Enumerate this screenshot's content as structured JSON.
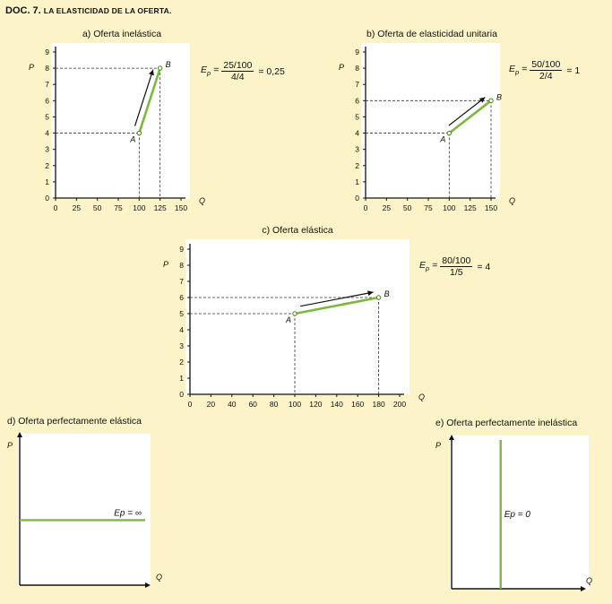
{
  "document": {
    "title_prefix": "DOC. 7.",
    "title_rest": "La elasticidad de la oferta."
  },
  "colors": {
    "background": "#fdf3c8",
    "panel": "#ffffff",
    "supply": "#7cb83c",
    "dashed": "#333333"
  },
  "chart_data": [
    {
      "id": "a",
      "type": "line",
      "title": "a)  Oferta inelástica",
      "xlabel": "Q",
      "ylabel": "P",
      "xlim": [
        0,
        150
      ],
      "ylim": [
        0,
        9
      ],
      "xticks": [
        0,
        25,
        50,
        75,
        100,
        125,
        150
      ],
      "yticks": [
        0,
        1,
        2,
        3,
        4,
        5,
        6,
        7,
        8,
        9
      ],
      "points": [
        {
          "label": "A",
          "x": 100,
          "y": 4
        },
        {
          "label": "B",
          "x": 125,
          "y": 8
        }
      ],
      "arrow": true,
      "formula": {
        "lhs": "E",
        "sub": "p",
        "num": "25/100",
        "den": "4/4",
        "result": "= 0,25"
      }
    },
    {
      "id": "b",
      "type": "line",
      "title": "b)  Oferta de elasticidad unitaria",
      "xlabel": "Q",
      "ylabel": "P",
      "xlim": [
        0,
        150
      ],
      "ylim": [
        0,
        9
      ],
      "xticks": [
        0,
        25,
        50,
        75,
        100,
        125,
        150
      ],
      "yticks": [
        0,
        1,
        2,
        3,
        4,
        5,
        6,
        7,
        8,
        9
      ],
      "points": [
        {
          "label": "A",
          "x": 100,
          "y": 4
        },
        {
          "label": "B",
          "x": 150,
          "y": 6
        }
      ],
      "arrow": true,
      "formula": {
        "lhs": "E",
        "sub": "p",
        "num": "50/100",
        "den": "2/4",
        "result": "= 1"
      }
    },
    {
      "id": "c",
      "type": "line",
      "title": "c)  Oferta elástica",
      "xlabel": "Q",
      "ylabel": "P",
      "xlim": [
        0,
        200
      ],
      "ylim": [
        0,
        9
      ],
      "xticks": [
        0,
        20,
        40,
        60,
        80,
        100,
        120,
        140,
        160,
        180,
        200
      ],
      "yticks": [
        0,
        1,
        2,
        3,
        4,
        5,
        6,
        7,
        8,
        9
      ],
      "points": [
        {
          "label": "A",
          "x": 100,
          "y": 5
        },
        {
          "label": "B",
          "x": 180,
          "y": 6
        }
      ],
      "arrow": true,
      "formula": {
        "lhs": "E",
        "sub": "p",
        "num": "80/100",
        "den": "1/5",
        "result": "= 4"
      }
    },
    {
      "id": "d",
      "type": "line",
      "title": "d)  Oferta perfectamente elástica",
      "xlabel": "Q",
      "ylabel": "P",
      "orientation": "horizontal",
      "level": 0.44,
      "annotation": "Ep = ∞"
    },
    {
      "id": "e",
      "type": "line",
      "title": "e)  Oferta perfectamente inelástica",
      "xlabel": "Q",
      "ylabel": "P",
      "orientation": "vertical",
      "level": 0.38,
      "annotation": "Ep = 0"
    }
  ]
}
